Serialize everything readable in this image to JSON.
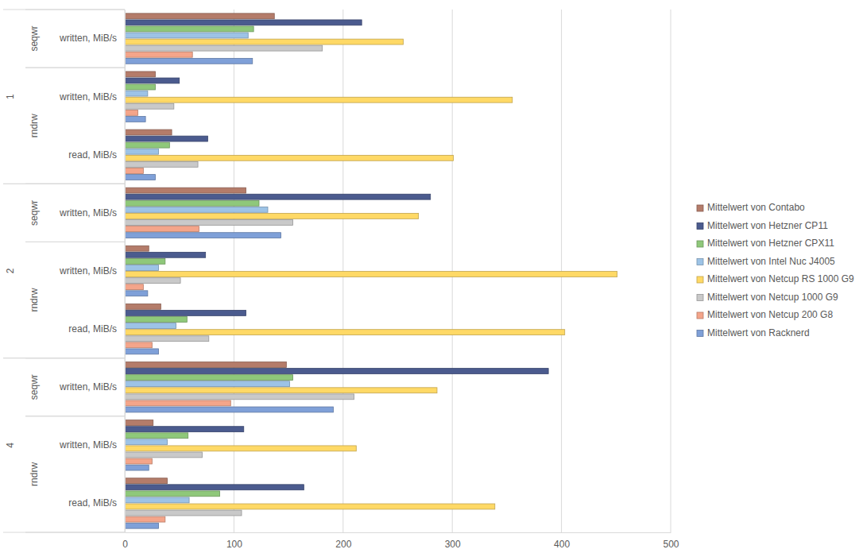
{
  "chart_data": {
    "type": "bar",
    "orientation": "horizontal",
    "grid": true,
    "legend": "right",
    "categories": [
      "written, MiB/s",
      "written, MiB/s",
      "read, MiB/s",
      "written, MiB/s",
      "written, MiB/s",
      "read, MiB/s",
      "written, MiB/s",
      "written, MiB/s",
      "read, MiB/s"
    ],
    "category_groups": [
      [
        "1",
        "1",
        "1",
        "2",
        "2",
        "2",
        "4",
        "4",
        "4"
      ],
      [
        "seqwr",
        "rndrw",
        "rndrw",
        "seqwr",
        "rndrw",
        "rndrw",
        "seqwr",
        "rndrw",
        "rndrw"
      ]
    ],
    "xlim": [
      0,
      500
    ],
    "xticks": [
      0,
      100,
      200,
      300,
      400,
      500
    ],
    "series": [
      {
        "name": "Mittelwert von Contabo",
        "color": "#b47c6a",
        "values": [
          137,
          28,
          43,
          111,
          22,
          33,
          148,
          26,
          39
        ]
      },
      {
        "name": "Mittelwert von Hetzner CP11",
        "color": "#4b5b8e",
        "values": [
          217,
          50,
          76,
          280,
          74,
          111,
          388,
          109,
          164
        ]
      },
      {
        "name": "Mittelwert von Hetzner CPX11",
        "color": "#8fc87a",
        "values": [
          118,
          28,
          41,
          123,
          37,
          57,
          154,
          58,
          87
        ]
      },
      {
        "name": "Mittelwert von Intel Nuc J4005",
        "color": "#9dc3e6",
        "values": [
          113,
          21,
          31,
          131,
          31,
          47,
          151,
          39,
          59
        ]
      },
      {
        "name": "Mittelwert von Netcup RS 1000 G9",
        "color": "#ffd966",
        "values": [
          255,
          355,
          301,
          269,
          451,
          403,
          286,
          212,
          339
        ]
      },
      {
        "name": "Mittelwert von Netcup 1000 G9",
        "color": "#c9c9c9",
        "values": [
          181,
          45,
          67,
          154,
          51,
          77,
          210,
          71,
          107
        ]
      },
      {
        "name": "Mittelwert von Netcup 200 G8",
        "color": "#f4a58a",
        "values": [
          62,
          12,
          17,
          68,
          17,
          25,
          97,
          25,
          37
        ]
      },
      {
        "name": "Mittelwert von Racknerd",
        "color": "#7fa0d8",
        "values": [
          117,
          19,
          28,
          143,
          21,
          31,
          191,
          22,
          31
        ]
      }
    ]
  }
}
